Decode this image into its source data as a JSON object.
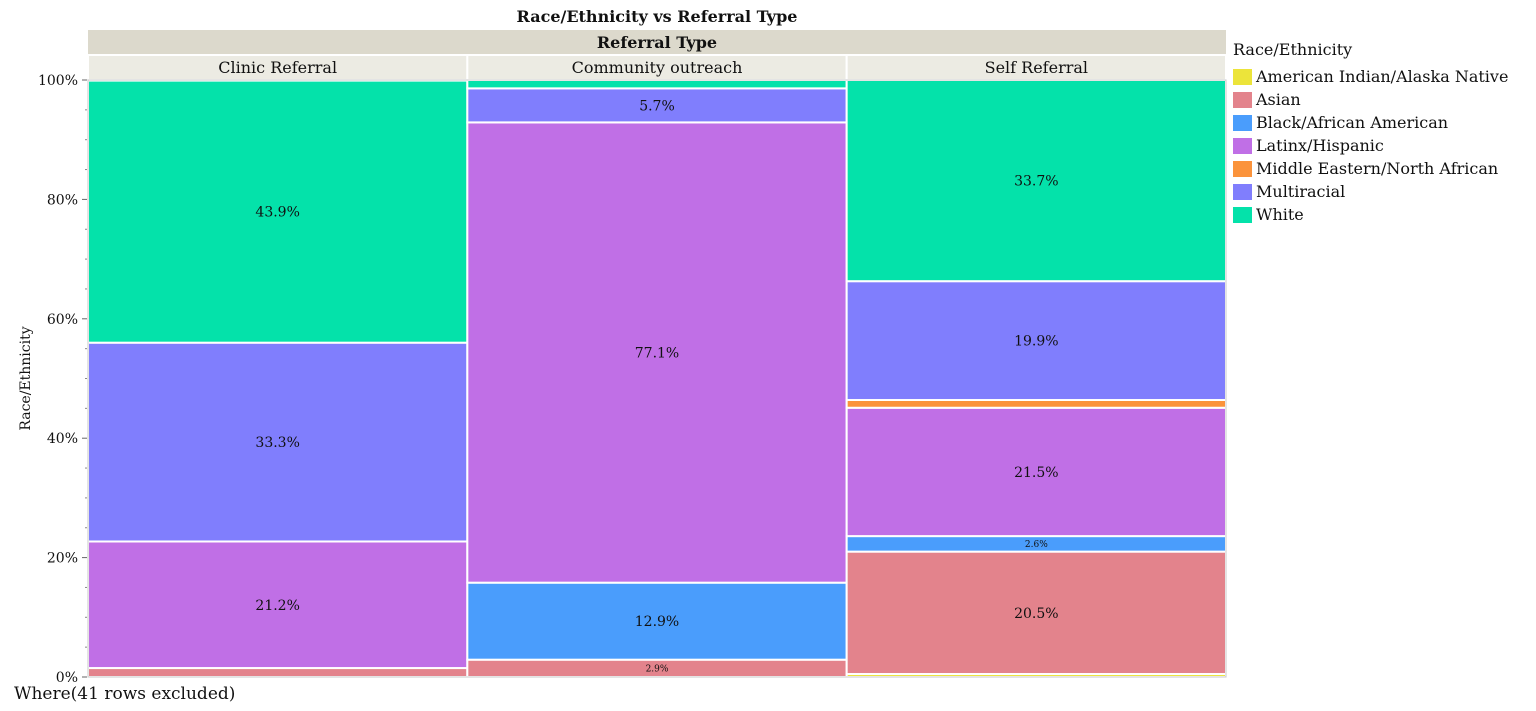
{
  "chart_data": {
    "type": "mosaic",
    "title": "Race/Ethnicity vs Referral Type",
    "column_header": "Referral Type",
    "ylabel": "Race/Ethnicity",
    "ylim": [
      0,
      100
    ],
    "yticks": [
      "0%",
      "20%",
      "40%",
      "60%",
      "80%",
      "100%"
    ],
    "ytick_values": [
      0,
      20,
      40,
      60,
      80,
      100
    ],
    "categories": [
      "Clinic Referral",
      "Community outreach",
      "Self Referral"
    ],
    "column_shares": [
      1,
      1,
      1
    ],
    "legend_title": "Race/Ethnicity",
    "series": [
      {
        "name": "American Indian/Alaska Native",
        "color": "#ece43a",
        "values": [
          0,
          0,
          0.5
        ]
      },
      {
        "name": "Asian",
        "color": "#e3838c",
        "values": [
          1.5,
          2.9,
          20.5
        ]
      },
      {
        "name": "Black/African American",
        "color": "#4a9dfc",
        "values": [
          0,
          12.9,
          2.6
        ]
      },
      {
        "name": "Latinx/Hispanic",
        "color": "#c06fe6",
        "values": [
          21.2,
          77.1,
          21.5
        ]
      },
      {
        "name": "Middle Eastern/North African",
        "color": "#fb933b",
        "values": [
          0,
          0,
          1.3
        ]
      },
      {
        "name": "Multiracial",
        "color": "#807efd",
        "values": [
          33.3,
          5.7,
          19.9
        ]
      },
      {
        "name": "White",
        "color": "#04e2aa",
        "values": [
          43.9,
          1.4,
          33.7
        ]
      }
    ],
    "data_labels": [
      [
        "",
        "",
        "",
        "21.2%",
        "",
        "33.3%",
        "43.9%"
      ],
      [
        "",
        "2.9%",
        "12.9%",
        "77.1%",
        "",
        "5.7%",
        ""
      ],
      [
        "",
        "20.5%",
        "2.6%",
        "21.5%",
        "",
        "19.9%",
        "33.7%"
      ]
    ],
    "grid": false,
    "legend_position": "right"
  },
  "footnote": "Where(41 rows excluded)"
}
